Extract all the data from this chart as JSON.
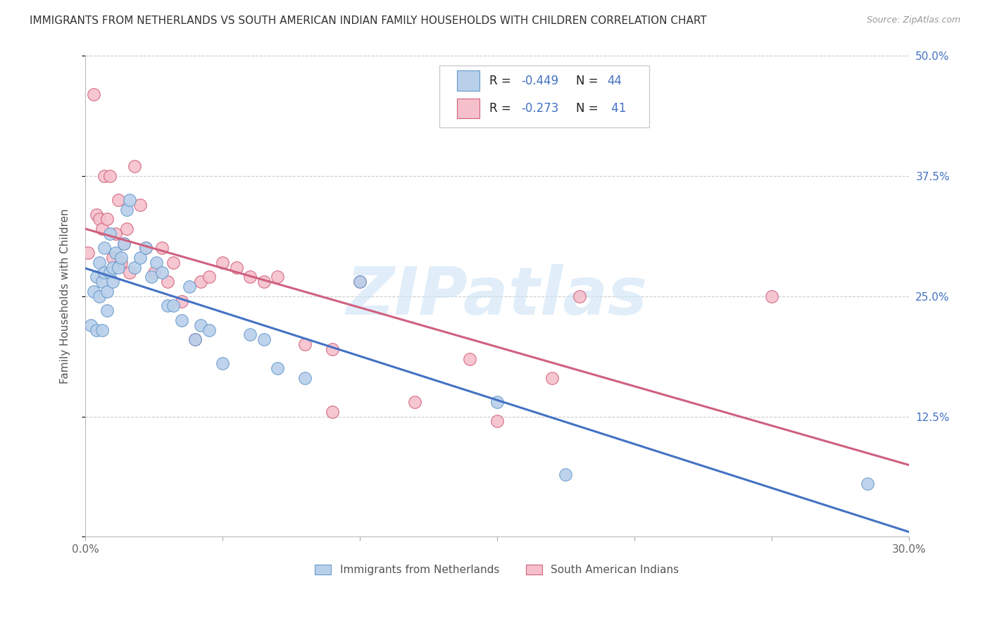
{
  "title": "IMMIGRANTS FROM NETHERLANDS VS SOUTH AMERICAN INDIAN FAMILY HOUSEHOLDS WITH CHILDREN CORRELATION CHART",
  "source": "Source: ZipAtlas.com",
  "ylabel": "Family Households with Children",
  "x_min": 0.0,
  "x_max": 0.3,
  "y_min": 0.0,
  "y_max": 0.5,
  "x_ticks": [
    0.0,
    0.05,
    0.1,
    0.15,
    0.2,
    0.25,
    0.3
  ],
  "y_ticks": [
    0.0,
    0.125,
    0.25,
    0.375,
    0.5
  ],
  "y_tick_labels_right": [
    "",
    "12.5%",
    "25.0%",
    "37.5%",
    "50.0%"
  ],
  "series1_label": "Immigrants from Netherlands",
  "series1_color": "#b8d0ea",
  "series1_edge_color": "#6699cc",
  "series1_line_color": "#4472c4",
  "series2_label": "South American Indians",
  "series2_color": "#f5c0cc",
  "series2_edge_color": "#d0607a",
  "series2_line_color": "#d06080",
  "series1_R": -0.449,
  "series1_N": 44,
  "series2_R": -0.273,
  "series2_N": 41,
  "watermark": "ZIPatlas",
  "background_color": "#ffffff",
  "grid_color": "#cccccc",
  "blue_x": [
    0.002,
    0.003,
    0.004,
    0.004,
    0.005,
    0.005,
    0.006,
    0.006,
    0.007,
    0.007,
    0.008,
    0.008,
    0.009,
    0.009,
    0.01,
    0.01,
    0.011,
    0.012,
    0.013,
    0.014,
    0.015,
    0.016,
    0.018,
    0.02,
    0.022,
    0.024,
    0.026,
    0.028,
    0.03,
    0.032,
    0.035,
    0.038,
    0.04,
    0.042,
    0.045,
    0.05,
    0.06,
    0.065,
    0.07,
    0.08,
    0.1,
    0.15,
    0.175,
    0.285
  ],
  "blue_y": [
    0.22,
    0.255,
    0.27,
    0.215,
    0.25,
    0.285,
    0.215,
    0.265,
    0.275,
    0.3,
    0.235,
    0.255,
    0.275,
    0.315,
    0.28,
    0.265,
    0.295,
    0.28,
    0.29,
    0.305,
    0.34,
    0.35,
    0.28,
    0.29,
    0.3,
    0.27,
    0.285,
    0.275,
    0.24,
    0.24,
    0.225,
    0.26,
    0.205,
    0.22,
    0.215,
    0.18,
    0.21,
    0.205,
    0.175,
    0.165,
    0.265,
    0.14,
    0.065,
    0.055
  ],
  "pink_x": [
    0.001,
    0.003,
    0.004,
    0.005,
    0.006,
    0.007,
    0.008,
    0.009,
    0.01,
    0.011,
    0.012,
    0.013,
    0.014,
    0.015,
    0.016,
    0.018,
    0.02,
    0.022,
    0.025,
    0.028,
    0.03,
    0.032,
    0.035,
    0.04,
    0.042,
    0.045,
    0.05,
    0.055,
    0.06,
    0.065,
    0.07,
    0.08,
    0.09,
    0.1,
    0.12,
    0.14,
    0.15,
    0.17,
    0.18,
    0.25,
    0.09
  ],
  "pink_y": [
    0.295,
    0.46,
    0.335,
    0.33,
    0.32,
    0.375,
    0.33,
    0.375,
    0.29,
    0.315,
    0.35,
    0.285,
    0.305,
    0.32,
    0.275,
    0.385,
    0.345,
    0.3,
    0.275,
    0.3,
    0.265,
    0.285,
    0.245,
    0.205,
    0.265,
    0.27,
    0.285,
    0.28,
    0.27,
    0.265,
    0.27,
    0.2,
    0.195,
    0.265,
    0.14,
    0.185,
    0.12,
    0.165,
    0.25,
    0.25,
    0.13
  ]
}
